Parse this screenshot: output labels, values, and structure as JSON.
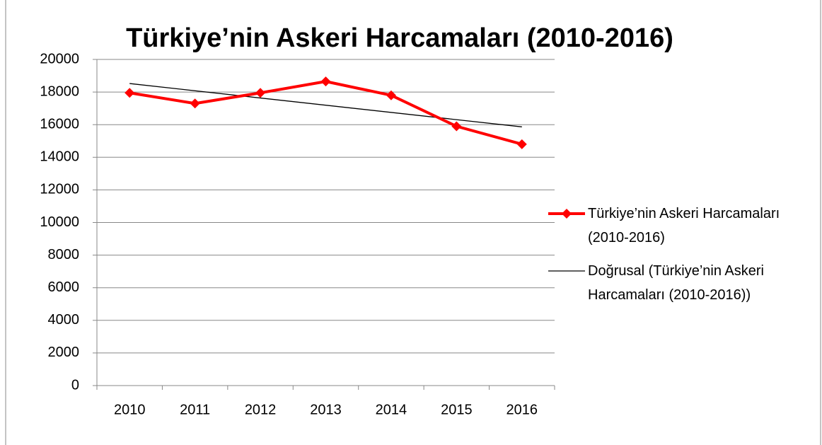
{
  "chart_data": {
    "type": "line",
    "title": "Türkiye’nin Askeri Harcamaları (2010-2016)",
    "categories": [
      "2010",
      "2011",
      "2012",
      "2013",
      "2014",
      "2015",
      "2016"
    ],
    "series": [
      {
        "name": "Türkiye’nin Askeri Harcamaları (2010-2016)",
        "color": "#ff0000",
        "values": [
          17950,
          17300,
          17950,
          18650,
          17800,
          15900,
          14800
        ]
      }
    ],
    "trendline": {
      "name": "Doğrusal (Türkiye’nin Askeri Harcamaları (2010-2016))",
      "color": "#000000",
      "type": "linear"
    },
    "ylim": [
      0,
      20000
    ],
    "yticks": [
      0,
      2000,
      4000,
      6000,
      8000,
      10000,
      12000,
      14000,
      16000,
      18000,
      20000
    ],
    "grid": true,
    "legend": "right"
  }
}
